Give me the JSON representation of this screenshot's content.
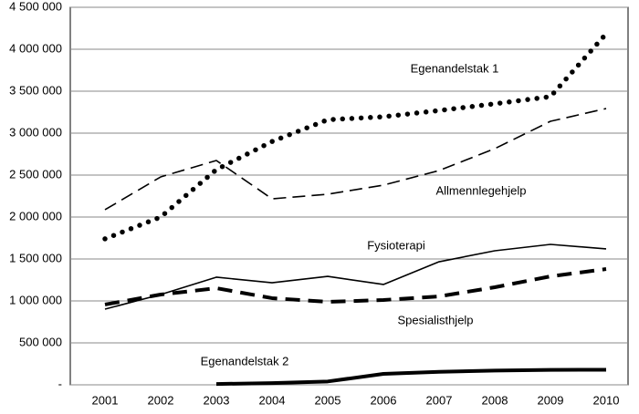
{
  "chart_data": {
    "type": "line",
    "categories": [
      "2001",
      "2002",
      "2003",
      "2004",
      "2005",
      "2006",
      "2007",
      "2008",
      "2009",
      "2010"
    ],
    "series": [
      {
        "name": "Egenandelstak 1",
        "color": "#000000",
        "style": "dotted",
        "values": [
          1740000,
          2000000,
          2565000,
          2900000,
          3160000,
          3195000,
          3270000,
          3350000,
          3435000,
          4185000
        ]
      },
      {
        "name": "Allmennlegehjelp",
        "color": "#000000",
        "style": "dashed",
        "values": [
          2087000,
          2478000,
          2674000,
          2217000,
          2272000,
          2380000,
          2554000,
          2815000,
          3141000,
          3293000
        ]
      },
      {
        "name": "Fysioterapi",
        "color": "#000000",
        "style": "solid",
        "values": [
          902000,
          1076000,
          1283000,
          1217000,
          1293000,
          1196000,
          1467000,
          1598000,
          1674000,
          1620000
        ]
      },
      {
        "name": "Spesialisthjelp",
        "color": "#000000",
        "style": "thick-dashed",
        "values": [
          957000,
          1076000,
          1152000,
          1033000,
          989000,
          1011000,
          1054000,
          1163000,
          1293000,
          1380000
        ]
      },
      {
        "name": "Egenandelstak 2",
        "color": "#000000",
        "style": "thick-solid",
        "values": [
          null,
          null,
          10000,
          20000,
          40000,
          130000,
          155000,
          170000,
          178000,
          180000
        ]
      }
    ],
    "ylim": [
      0,
      4500000
    ],
    "yticks": [
      {
        "value": 0,
        "label": "-"
      },
      {
        "value": 500000,
        "label": "500 000"
      },
      {
        "value": 1000000,
        "label": "1 000 000"
      },
      {
        "value": 1500000,
        "label": "1 500 000"
      },
      {
        "value": 2000000,
        "label": "2 000 000"
      },
      {
        "value": 2500000,
        "label": "2 500 000"
      },
      {
        "value": 3000000,
        "label": "3 000 000"
      },
      {
        "value": 3500000,
        "label": "3 500 000"
      },
      {
        "value": 4000000,
        "label": "4 000 000"
      },
      {
        "value": 4500000,
        "label": "4 500 000"
      }
    ],
    "grid": true
  }
}
